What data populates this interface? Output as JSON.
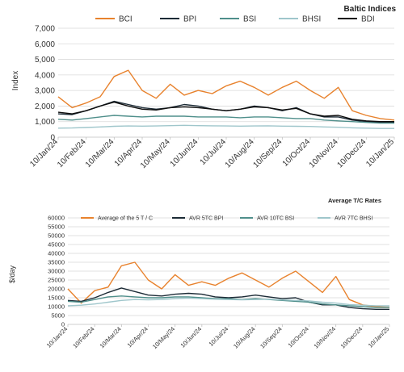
{
  "chart_data": [
    {
      "type": "line",
      "title": "Baltic Indices",
      "ylabel": "Index",
      "xlabel": "",
      "ylim": [
        0,
        7000
      ],
      "y_ticks": [
        "0",
        "1,000",
        "2,000",
        "3,000",
        "4,000",
        "5,000",
        "6,000",
        "7,000"
      ],
      "x_ticks": [
        "10/Jan/24",
        "10/Feb/24",
        "10/Mar/24",
        "10/Apr/24",
        "10/May/24",
        "10/Jun/24",
        "10/Jul/24",
        "10/Aug/24",
        "10/Sep/24",
        "10/Oct/24",
        "10/Nov/24",
        "10/Dec/24",
        "10/Jan/25"
      ],
      "grid": true,
      "legend_position": "top",
      "series": [
        {
          "name": "BCI",
          "color": "#e8822d",
          "values": [
            2600,
            1900,
            2200,
            2600,
            3900,
            4300,
            3000,
            2500,
            3400,
            2700,
            3000,
            2800,
            3300,
            3600,
            3200,
            2700,
            3200,
            3600,
            3000,
            2500,
            3200,
            1700,
            1400,
            1200,
            1100
          ]
        },
        {
          "name": "BPI",
          "color": "#1c2b36",
          "values": [
            1500,
            1450,
            1700,
            2000,
            2300,
            2100,
            1900,
            1800,
            1900,
            2100,
            2000,
            1800,
            1700,
            1800,
            2000,
            1900,
            1700,
            1900,
            1500,
            1300,
            1300,
            1100,
            1000,
            950,
            950
          ]
        },
        {
          "name": "BSI",
          "color": "#4f8f8b",
          "values": [
            1150,
            1100,
            1200,
            1300,
            1400,
            1350,
            1300,
            1350,
            1350,
            1350,
            1300,
            1300,
            1300,
            1250,
            1300,
            1300,
            1250,
            1200,
            1200,
            1100,
            1050,
            1000,
            950,
            900,
            900
          ]
        },
        {
          "name": "BHSI",
          "color": "#9fc6cb",
          "values": [
            580,
            590,
            620,
            660,
            700,
            720,
            710,
            720,
            740,
            760,
            740,
            730,
            720,
            710,
            720,
            730,
            710,
            700,
            690,
            660,
            640,
            600,
            580,
            560,
            560
          ]
        },
        {
          "name": "BDI",
          "color": "#0d0d0d",
          "values": [
            1600,
            1500,
            1700,
            2000,
            2250,
            2000,
            1800,
            1750,
            1900,
            1950,
            1900,
            1800,
            1700,
            1800,
            1950,
            1900,
            1750,
            1850,
            1500,
            1350,
            1400,
            1150,
            1050,
            1000,
            1000
          ]
        }
      ]
    },
    {
      "type": "line",
      "title": "Average T/C Rates",
      "ylabel": "$/day",
      "xlabel": "",
      "ylim": [
        0,
        60000
      ],
      "y_ticks": [
        "0",
        "5000",
        "10000",
        "15000",
        "20000",
        "25000",
        "30000",
        "35000",
        "40000",
        "45000",
        "50000",
        "55000",
        "60000"
      ],
      "x_ticks": [
        "10/Jan/24",
        "10/Feb/24",
        "10/Mar/24",
        "10/Apr/24",
        "10/May/24",
        "10/Jun/24",
        "10/Jul/24",
        "10/Aug/24",
        "10/Sep/24",
        "10/Oct/24",
        "10/Nov/24",
        "10/Dec/24",
        "10/Jan/25"
      ],
      "grid": true,
      "legend_position": "top",
      "series": [
        {
          "name": "Average of the 5 T / C",
          "color": "#e8822d",
          "values": [
            20000,
            12000,
            19000,
            21000,
            33000,
            35000,
            25000,
            20000,
            28000,
            22000,
            24000,
            22000,
            26000,
            29000,
            25000,
            21000,
            26000,
            30000,
            24000,
            18000,
            27000,
            14000,
            11000,
            10000,
            9500
          ]
        },
        {
          "name": "AVR 5TC BPI",
          "color": "#1c2b36",
          "values": [
            13500,
            13000,
            15000,
            18000,
            20500,
            18500,
            16500,
            16000,
            17000,
            17500,
            17000,
            15500,
            15000,
            15500,
            16500,
            15500,
            14500,
            15000,
            12500,
            11000,
            11000,
            9500,
            8800,
            8500,
            8500
          ]
        },
        {
          "name": "AVR 10TC BSI",
          "color": "#4f8f8b",
          "values": [
            13000,
            12500,
            14000,
            15500,
            16000,
            15500,
            15000,
            15000,
            15500,
            15500,
            15000,
            14500,
            14500,
            14000,
            14500,
            14000,
            13500,
            13000,
            12500,
            11500,
            11000,
            10500,
            10000,
            9500,
            9500
          ]
        },
        {
          "name": "AVR 7TC BHSI",
          "color": "#9fc6cb",
          "values": [
            10500,
            10800,
            11500,
            12500,
            13500,
            14000,
            13800,
            14000,
            14500,
            14800,
            14500,
            14200,
            14000,
            13800,
            14000,
            14200,
            13800,
            13500,
            13200,
            12500,
            12000,
            11200,
            10800,
            10500,
            10500
          ]
        }
      ]
    }
  ]
}
